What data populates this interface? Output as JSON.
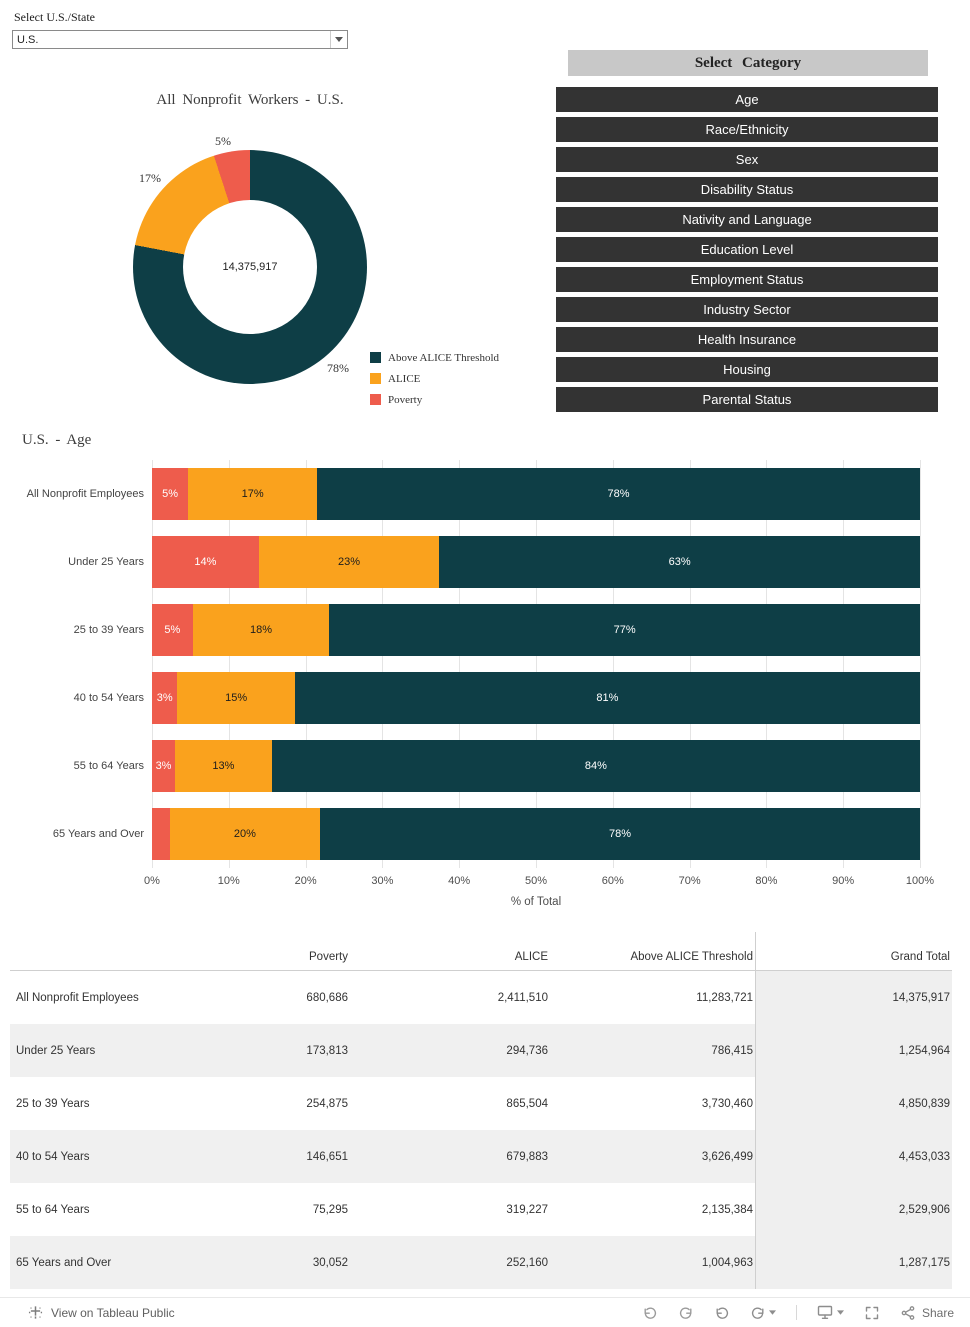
{
  "colors": {
    "above": "#0e3e46",
    "alice": "#faa21d",
    "poverty": "#ee5c4c",
    "button_bg": "#333333",
    "cat_header_bg": "#c8c8c8",
    "band": "#f0f0f0"
  },
  "filter": {
    "label": "Select U.S./State",
    "value": "U.S."
  },
  "category_panel": {
    "header": "Select Category",
    "items": [
      "Age",
      "Race/Ethnicity",
      "Sex",
      "Disability Status",
      "Nativity and Language",
      "Education Level",
      "Employment Status",
      "Industry Sector",
      "Health Insurance",
      "Housing",
      "Parental Status"
    ]
  },
  "chart_data": [
    {
      "type": "pie",
      "donut": true,
      "title": "All Nonprofit Workers - U.S.",
      "center_label": "14,375,917",
      "labels": [
        "Above ALICE Threshold",
        "ALICE",
        "Poverty"
      ],
      "values": [
        78,
        17,
        5
      ],
      "pct_labels": [
        "78%",
        "17%",
        "5%"
      ],
      "colors": [
        "#0e3e46",
        "#faa21d",
        "#ee5c4c"
      ],
      "legend_position": "right"
    },
    {
      "type": "bar",
      "orientation": "horizontal",
      "stacked": true,
      "title": "U.S. - Age",
      "categories": [
        "All Nonprofit Employees",
        "Under 25 Years",
        "25 to 39 Years",
        "40 to 54 Years",
        "55 to 64 Years",
        "65 Years and Over"
      ],
      "series": [
        {
          "name": "Poverty",
          "color": "#ee5c4c",
          "label_color": "#ffffff",
          "values": [
            4.7,
            13.9,
            5.3,
            3.3,
            3.0,
            2.3
          ],
          "labels": [
            "5%",
            "14%",
            "5%",
            "3%",
            "3%",
            ""
          ]
        },
        {
          "name": "ALICE",
          "color": "#faa21d",
          "label_color": "#1d1d1d",
          "values": [
            16.8,
            23.5,
            17.8,
            15.3,
            12.6,
            19.6
          ],
          "labels": [
            "17%",
            "23%",
            "18%",
            "15%",
            "13%",
            "20%"
          ]
        },
        {
          "name": "Above ALICE Threshold",
          "color": "#0e3e46",
          "label_color": "#ffffff",
          "values": [
            78.5,
            62.6,
            76.9,
            81.4,
            84.4,
            78.1
          ],
          "labels": [
            "78%",
            "63%",
            "77%",
            "81%",
            "84%",
            "78%"
          ]
        }
      ],
      "xlabel": "% of Total",
      "xlim": [
        0,
        100
      ],
      "xticks": [
        "0%",
        "10%",
        "20%",
        "30%",
        "40%",
        "50%",
        "60%",
        "70%",
        "80%",
        "90%",
        "100%"
      ],
      "grid": true
    },
    {
      "type": "table",
      "columns": [
        "",
        "Poverty",
        "ALICE",
        "Above ALICE Threshold",
        "Grand Total"
      ],
      "rows": [
        {
          "label": "All Nonprofit Employees",
          "values": [
            "680,686",
            "2,411,510",
            "11,283,721",
            "14,375,917"
          ]
        },
        {
          "label": "Under 25 Years",
          "values": [
            "173,813",
            "294,736",
            "786,415",
            "1,254,964"
          ]
        },
        {
          "label": "25 to 39 Years",
          "values": [
            "254,875",
            "865,504",
            "3,730,460",
            "4,850,839"
          ]
        },
        {
          "label": "40 to 54 Years",
          "values": [
            "146,651",
            "679,883",
            "3,626,499",
            "4,453,033"
          ]
        },
        {
          "label": "55 to 64 Years",
          "values": [
            "75,295",
            "319,227",
            "2,135,384",
            "2,529,906"
          ]
        },
        {
          "label": "65 Years and Over",
          "values": [
            "30,052",
            "252,160",
            "1,004,963",
            "1,287,175"
          ]
        }
      ]
    }
  ],
  "toolbar": {
    "view_label": "View on Tableau Public",
    "share_label": "Share"
  }
}
